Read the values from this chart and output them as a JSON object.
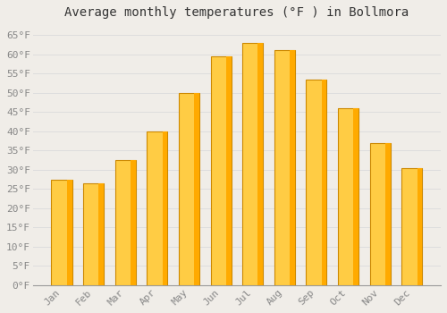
{
  "title": "Average monthly temperatures (°F ) in Bollmora",
  "months": [
    "Jan",
    "Feb",
    "Mar",
    "Apr",
    "May",
    "Jun",
    "Jul",
    "Aug",
    "Sep",
    "Oct",
    "Nov",
    "Dec"
  ],
  "values": [
    27.5,
    26.5,
    32.5,
    40.0,
    50.0,
    59.5,
    63.0,
    61.0,
    53.5,
    46.0,
    37.0,
    30.5
  ],
  "bar_color_main": "#FFAA00",
  "bar_color_light": "#FFCC44",
  "bar_edge_color": "#CC8800",
  "background_color": "#F0EDE8",
  "grid_color": "#DDDDDD",
  "ylim": [
    0,
    68
  ],
  "yticks": [
    0,
    5,
    10,
    15,
    20,
    25,
    30,
    35,
    40,
    45,
    50,
    55,
    60,
    65
  ],
  "tick_label_color": "#888888",
  "title_fontsize": 10,
  "axis_fontsize": 8,
  "font_family": "monospace"
}
